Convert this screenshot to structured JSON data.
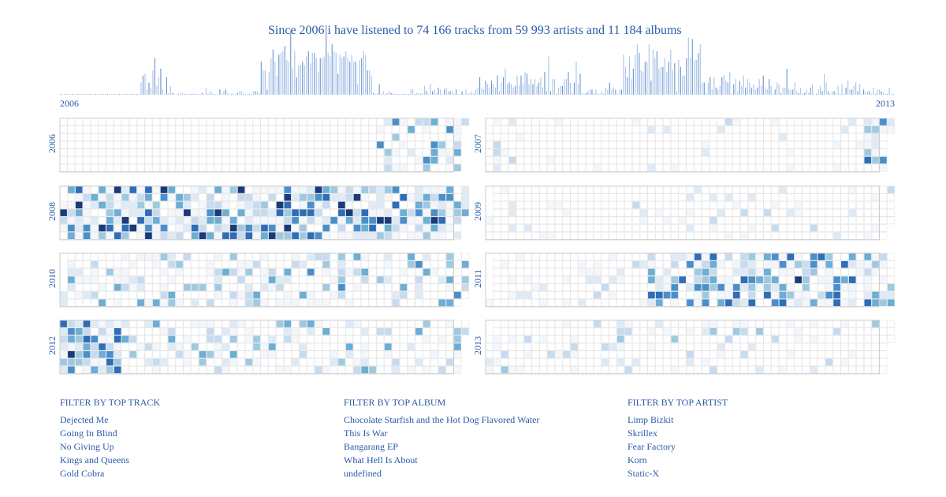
{
  "header": {
    "title": "Since 2006 i have listened to 74 166 tracks from 59 993 artists and 11 184 albums"
  },
  "chart_data": {
    "type": "heatmap",
    "title": "Since 2006 i have listened to 74 166 tracks from 59 993 artists and 11 184 albums",
    "timeline": {
      "type": "bar",
      "start_label": "2006",
      "end_label": "2013"
    },
    "years": [
      "2006",
      "2007",
      "2008",
      "2009",
      "2010",
      "2011",
      "2012",
      "2013"
    ],
    "layout": "calendar: weeks as columns, weekdays as rows, month borders outlined",
    "color_scale": [
      "#f3f7fc",
      "#deebf7",
      "#c6dbef",
      "#9ecae1",
      "#6baed6",
      "#4a8fcc",
      "#2e6db8",
      "#1a3a7a"
    ],
    "relative_activity_by_year": {
      "2006": 0.25,
      "2007": 0.12,
      "2008": 0.85,
      "2009": 0.15,
      "2010": 0.45,
      "2011": 0.6,
      "2012": 0.65,
      "2013": 0.25
    }
  },
  "filters": [
    {
      "heading": "Filter by top track",
      "items": [
        "Dejected Me",
        "Going In Blind",
        "No Giving Up",
        "Kings and Queens",
        "Gold Cobra"
      ]
    },
    {
      "heading": "Filter by top album",
      "items": [
        "Chocolate Starfish and the Hot Dog Flavored Water",
        "This Is War",
        "Bangarang EP",
        "What Hell Is About",
        "undefined"
      ]
    },
    {
      "heading": "Filter by top artist",
      "items": [
        "Limp Bizkit",
        "Skrillex",
        "Fear Factory",
        "Korn",
        "Static-X"
      ]
    }
  ]
}
